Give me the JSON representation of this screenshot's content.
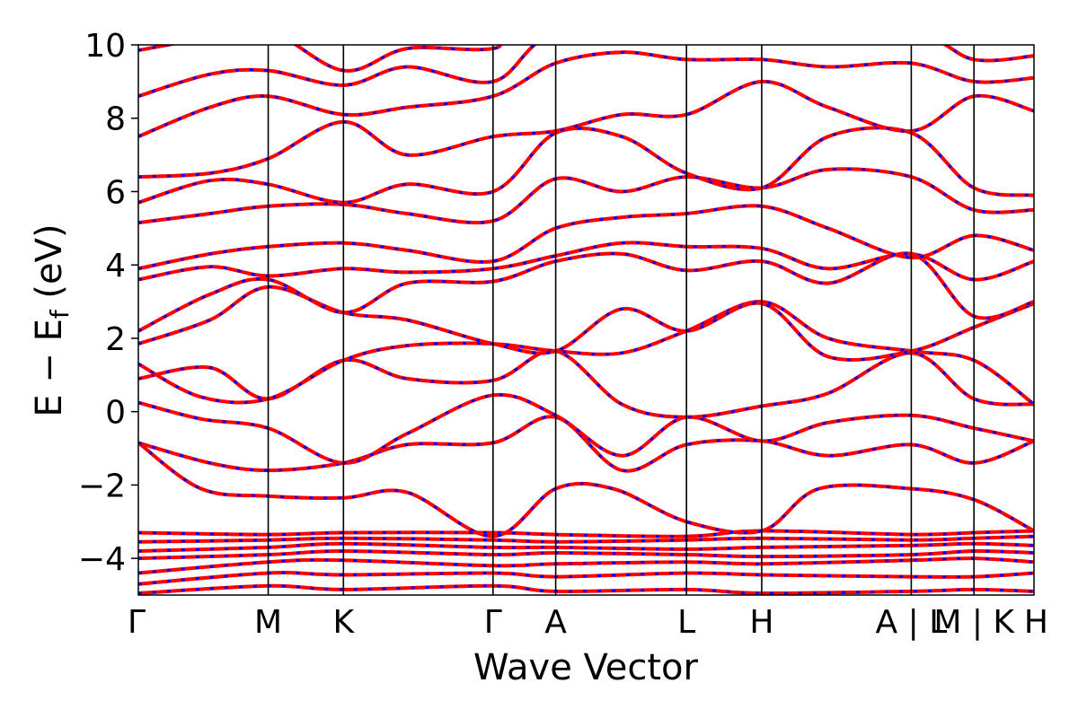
{
  "chart_data": {
    "type": "line",
    "title": "",
    "xlabel": "Wave Vector",
    "ylabel": "E − E",
    "ylabel_sub": "f",
    "ylabel_unit": " (eV)",
    "ylim": [
      -5,
      10
    ],
    "yticks": [
      {
        "value": -4,
        "label": "−4"
      },
      {
        "value": -2,
        "label": "−2"
      },
      {
        "value": 0,
        "label": "0"
      },
      {
        "value": 2,
        "label": "2"
      },
      {
        "value": 4,
        "label": "4"
      },
      {
        "value": 6,
        "label": "6"
      },
      {
        "value": 8,
        "label": "8"
      },
      {
        "value": 10,
        "label": "10"
      }
    ],
    "xlim": [
      0,
      10
    ],
    "kpoints": [
      {
        "label": "Γ",
        "x": 0.0
      },
      {
        "label": "M",
        "x": 1.45
      },
      {
        "label": "K",
        "x": 2.29
      },
      {
        "label": "Γ",
        "x": 3.96
      },
      {
        "label": "A",
        "x": 4.66
      },
      {
        "label": "L",
        "x": 6.12
      },
      {
        "label": "H",
        "x": 6.96
      },
      {
        "label": "A | L",
        "x": 8.63
      },
      {
        "label": "M | K",
        "x": 9.33
      },
      {
        "label": "H",
        "x": 10.0
      }
    ],
    "series": [
      {
        "color": "#ff0000"
      },
      {
        "color": "#0000ff"
      }
    ],
    "bands": [
      [
        [
          0,
          -4.95
        ],
        [
          1.45,
          -4.75
        ],
        [
          2.29,
          -4.85
        ],
        [
          3.96,
          -4.75
        ],
        [
          4.66,
          -4.9
        ],
        [
          6.12,
          -4.85
        ],
        [
          6.96,
          -4.95
        ],
        [
          8.63,
          -4.9
        ],
        [
          9.33,
          -4.85
        ],
        [
          10,
          -4.9
        ]
      ],
      [
        [
          0,
          -4.7
        ],
        [
          1.45,
          -4.4
        ],
        [
          2.29,
          -4.45
        ],
        [
          3.96,
          -4.4
        ],
        [
          4.66,
          -4.5
        ],
        [
          6.12,
          -4.4
        ],
        [
          6.96,
          -4.45
        ],
        [
          8.63,
          -4.5
        ],
        [
          9.33,
          -4.5
        ],
        [
          10,
          -4.4
        ]
      ],
      [
        [
          0,
          -4.4
        ],
        [
          1.45,
          -4.1
        ],
        [
          2.29,
          -4.05
        ],
        [
          3.96,
          -4.2
        ],
        [
          4.66,
          -4.15
        ],
        [
          6.12,
          -4.1
        ],
        [
          6.96,
          -4.15
        ],
        [
          8.63,
          -4.05
        ],
        [
          9.33,
          -4.0
        ],
        [
          10,
          -4.1
        ]
      ],
      [
        [
          0,
          -4.0
        ],
        [
          1.45,
          -3.9
        ],
        [
          2.29,
          -3.8
        ],
        [
          3.96,
          -3.9
        ],
        [
          4.66,
          -3.85
        ],
        [
          6.12,
          -3.9
        ],
        [
          6.96,
          -3.95
        ],
        [
          8.63,
          -3.9
        ],
        [
          9.33,
          -3.8
        ],
        [
          10,
          -3.85
        ]
      ],
      [
        [
          0,
          -3.8
        ],
        [
          1.45,
          -3.7
        ],
        [
          2.29,
          -3.6
        ],
        [
          3.96,
          -3.7
        ],
        [
          4.66,
          -3.7
        ],
        [
          6.12,
          -3.75
        ],
        [
          6.96,
          -3.7
        ],
        [
          8.63,
          -3.65
        ],
        [
          9.33,
          -3.6
        ],
        [
          10,
          -3.65
        ]
      ],
      [
        [
          0,
          -3.55
        ],
        [
          1.45,
          -3.5
        ],
        [
          2.29,
          -3.45
        ],
        [
          3.96,
          -3.5
        ],
        [
          4.66,
          -3.55
        ],
        [
          6.12,
          -3.5
        ],
        [
          6.96,
          -3.45
        ],
        [
          8.63,
          -3.5
        ],
        [
          9.33,
          -3.45
        ],
        [
          10,
          -3.4
        ]
      ],
      [
        [
          0,
          -3.3
        ],
        [
          1.45,
          -3.35
        ],
        [
          2.29,
          -3.3
        ],
        [
          3.96,
          -3.3
        ],
        [
          4.66,
          -3.35
        ],
        [
          6.12,
          -3.4
        ],
        [
          6.96,
          -3.25
        ],
        [
          8.63,
          -3.35
        ],
        [
          9.33,
          -3.3
        ],
        [
          10,
          -3.25
        ]
      ],
      [
        [
          0,
          -0.85
        ],
        [
          0.7,
          -2.1
        ],
        [
          1.45,
          -2.3
        ],
        [
          2.29,
          -2.35
        ],
        [
          3.0,
          -2.2
        ],
        [
          3.96,
          -3.4
        ],
        [
          4.66,
          -2.1
        ],
        [
          5.3,
          -2.1
        ],
        [
          6.12,
          -3.0
        ],
        [
          6.96,
          -3.25
        ],
        [
          7.6,
          -2.1
        ],
        [
          8.63,
          -2.1
        ],
        [
          9.33,
          -2.4
        ],
        [
          10,
          -3.25
        ]
      ],
      [
        [
          0,
          -0.85
        ],
        [
          0.8,
          -1.4
        ],
        [
          1.45,
          -1.6
        ],
        [
          2.29,
          -1.4
        ],
        [
          3.0,
          -0.9
        ],
        [
          3.96,
          -0.85
        ],
        [
          4.66,
          -0.15
        ],
        [
          5.4,
          -1.6
        ],
        [
          6.12,
          -0.9
        ],
        [
          6.96,
          -0.8
        ],
        [
          7.7,
          -1.2
        ],
        [
          8.63,
          -0.9
        ],
        [
          9.33,
          -1.4
        ],
        [
          10,
          -0.8
        ]
      ],
      [
        [
          0,
          0.25
        ],
        [
          0.7,
          -0.2
        ],
        [
          1.45,
          -0.45
        ],
        [
          2.29,
          -1.4
        ],
        [
          3.0,
          -0.6
        ],
        [
          3.96,
          0.45
        ],
        [
          4.66,
          -0.1
        ],
        [
          5.4,
          -1.2
        ],
        [
          6.12,
          -0.15
        ],
        [
          6.96,
          -0.8
        ],
        [
          7.7,
          -0.3
        ],
        [
          8.63,
          -0.1
        ],
        [
          9.33,
          -0.45
        ],
        [
          10,
          -0.8
        ]
      ],
      [
        [
          0,
          0.9
        ],
        [
          0.8,
          1.2
        ],
        [
          1.45,
          0.35
        ],
        [
          2.29,
          1.4
        ],
        [
          3.0,
          0.9
        ],
        [
          3.96,
          0.85
        ],
        [
          4.66,
          1.65
        ],
        [
          5.4,
          0.2
        ],
        [
          6.12,
          -0.15
        ],
        [
          6.96,
          0.15
        ],
        [
          7.7,
          0.5
        ],
        [
          8.63,
          1.6
        ],
        [
          9.33,
          0.35
        ],
        [
          10,
          0.2
        ]
      ],
      [
        [
          0,
          1.3
        ],
        [
          0.7,
          0.4
        ],
        [
          1.45,
          0.35
        ],
        [
          2.29,
          1.4
        ],
        [
          3.0,
          1.8
        ],
        [
          3.96,
          1.85
        ],
        [
          4.66,
          1.65
        ],
        [
          5.4,
          1.6
        ],
        [
          6.12,
          2.2
        ],
        [
          6.96,
          3.0
        ],
        [
          7.7,
          2.0
        ],
        [
          8.63,
          1.65
        ],
        [
          9.33,
          1.4
        ],
        [
          10,
          0.2
        ]
      ],
      [
        [
          0,
          1.85
        ],
        [
          0.8,
          2.5
        ],
        [
          1.45,
          3.4
        ],
        [
          2.29,
          2.7
        ],
        [
          3.0,
          2.5
        ],
        [
          3.96,
          1.85
        ],
        [
          4.66,
          1.65
        ],
        [
          5.4,
          2.8
        ],
        [
          6.12,
          2.2
        ],
        [
          6.96,
          2.95
        ],
        [
          7.7,
          1.5
        ],
        [
          8.63,
          1.65
        ],
        [
          9.33,
          2.3
        ],
        [
          10,
          2.95
        ]
      ],
      [
        [
          0,
          2.2
        ],
        [
          0.8,
          3.2
        ],
        [
          1.45,
          3.6
        ],
        [
          2.29,
          2.7
        ],
        [
          3.0,
          3.5
        ],
        [
          3.96,
          3.55
        ],
        [
          4.66,
          4.1
        ],
        [
          5.4,
          4.3
        ],
        [
          6.12,
          3.85
        ],
        [
          6.96,
          4.1
        ],
        [
          7.7,
          3.5
        ],
        [
          8.63,
          4.3
        ],
        [
          9.33,
          2.6
        ],
        [
          10,
          3.0
        ]
      ],
      [
        [
          0,
          3.6
        ],
        [
          0.8,
          3.95
        ],
        [
          1.45,
          3.7
        ],
        [
          2.29,
          3.9
        ],
        [
          3.0,
          3.8
        ],
        [
          3.96,
          3.9
        ],
        [
          4.66,
          4.25
        ],
        [
          5.4,
          4.6
        ],
        [
          6.12,
          4.5
        ],
        [
          6.96,
          4.45
        ],
        [
          7.7,
          3.9
        ],
        [
          8.63,
          4.3
        ],
        [
          9.33,
          3.6
        ],
        [
          10,
          4.1
        ]
      ],
      [
        [
          0,
          3.9
        ],
        [
          0.8,
          4.3
        ],
        [
          1.45,
          4.5
        ],
        [
          2.29,
          4.6
        ],
        [
          3.0,
          4.4
        ],
        [
          3.96,
          4.1
        ],
        [
          4.66,
          5.0
        ],
        [
          5.4,
          5.3
        ],
        [
          6.12,
          5.4
        ],
        [
          6.96,
          5.6
        ],
        [
          7.7,
          5.0
        ],
        [
          8.63,
          4.2
        ],
        [
          9.33,
          4.8
        ],
        [
          10,
          4.4
        ]
      ],
      [
        [
          0,
          5.15
        ],
        [
          0.8,
          5.4
        ],
        [
          1.45,
          5.6
        ],
        [
          2.29,
          5.65
        ],
        [
          3.0,
          5.4
        ],
        [
          3.96,
          5.2
        ],
        [
          4.66,
          6.35
        ],
        [
          5.4,
          6.0
        ],
        [
          6.12,
          6.4
        ],
        [
          6.96,
          6.1
        ],
        [
          7.7,
          6.6
        ],
        [
          8.63,
          6.4
        ],
        [
          9.33,
          5.5
        ],
        [
          10,
          5.5
        ]
      ],
      [
        [
          0,
          5.7
        ],
        [
          0.8,
          6.3
        ],
        [
          1.45,
          6.2
        ],
        [
          2.29,
          5.7
        ],
        [
          3.0,
          6.2
        ],
        [
          3.96,
          6.0
        ],
        [
          4.66,
          7.6
        ],
        [
          5.4,
          7.5
        ],
        [
          6.12,
          6.5
        ],
        [
          6.96,
          6.1
        ],
        [
          7.7,
          7.5
        ],
        [
          8.63,
          7.6
        ],
        [
          9.33,
          6.1
        ],
        [
          10,
          5.9
        ]
      ],
      [
        [
          0,
          6.4
        ],
        [
          0.8,
          6.5
        ],
        [
          1.45,
          6.9
        ],
        [
          2.29,
          7.9
        ],
        [
          3.0,
          7.0
        ],
        [
          3.96,
          7.5
        ],
        [
          4.66,
          7.65
        ],
        [
          5.4,
          8.1
        ],
        [
          6.12,
          8.1
        ],
        [
          6.96,
          9.0
        ],
        [
          7.7,
          8.3
        ],
        [
          8.63,
          7.65
        ],
        [
          9.33,
          8.6
        ],
        [
          10,
          8.2
        ]
      ],
      [
        [
          0,
          7.5
        ],
        [
          0.8,
          8.3
        ],
        [
          1.45,
          8.6
        ],
        [
          2.29,
          8.1
        ],
        [
          3.0,
          8.3
        ],
        [
          3.96,
          8.6
        ],
        [
          4.66,
          9.5
        ],
        [
          5.4,
          9.8
        ],
        [
          6.12,
          9.6
        ],
        [
          6.96,
          9.6
        ],
        [
          7.7,
          9.4
        ],
        [
          8.63,
          9.5
        ],
        [
          9.33,
          9.0
        ],
        [
          10,
          9.1
        ]
      ],
      [
        [
          0,
          8.6
        ],
        [
          0.8,
          9.2
        ],
        [
          1.45,
          9.3
        ],
        [
          2.29,
          8.9
        ],
        [
          3.0,
          9.4
        ],
        [
          3.96,
          9.0
        ],
        [
          4.66,
          10.3
        ],
        [
          6.12,
          10.2
        ],
        [
          6.96,
          10.1
        ],
        [
          8.63,
          10.3
        ],
        [
          9.33,
          9.6
        ],
        [
          10,
          9.7
        ]
      ],
      [
        [
          0,
          9.85
        ],
        [
          0.8,
          10.2
        ],
        [
          1.45,
          10.4
        ],
        [
          2.29,
          9.3
        ],
        [
          3.0,
          9.9
        ],
        [
          3.96,
          9.9
        ],
        [
          4.66,
          10.5
        ],
        [
          10,
          10.5
        ]
      ]
    ]
  }
}
